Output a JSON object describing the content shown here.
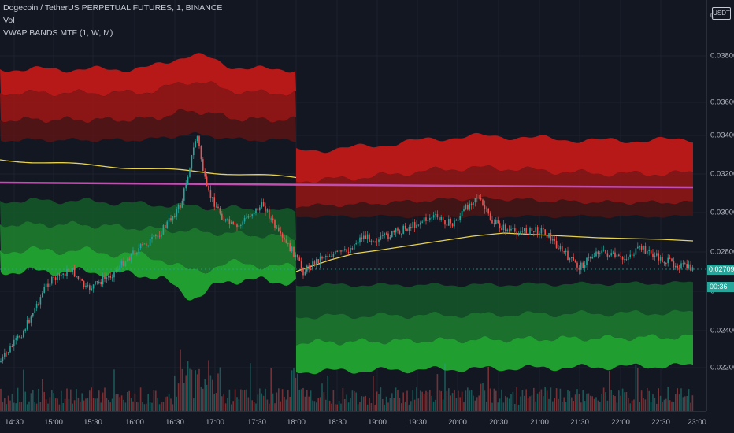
{
  "legend": {
    "symbol": "Dogecoin / TetherUS PERPETUAL FUTURES, 1, BINANCE",
    "volume": "Vol",
    "indicator": "VWAP BANDS MTF (1, W, M)"
  },
  "currency_label": "USDT",
  "price_axis": {
    "ticks": [
      "0.038000",
      "0.036000",
      "0.034000",
      "0.032000",
      "0.030000",
      "0.028000",
      "0.024000",
      "0.022000"
    ],
    "top_label": "0",
    "partial_label": "0",
    "last_price": "0.027098",
    "countdown": "00:36"
  },
  "time_axis": {
    "ticks": [
      "14:30",
      "15:00",
      "15:30",
      "16:00",
      "16:30",
      "17:00",
      "17:30",
      "18:00",
      "18:30",
      "19:00",
      "19:30",
      "20:00",
      "20:30",
      "21:00",
      "21:30",
      "22:00",
      "22:30",
      "23:00"
    ]
  },
  "colors": {
    "background": "#131722",
    "up": "#26a69a",
    "down": "#ef5350",
    "vwap_line": "#e8d24c",
    "monthly_line": "#c04fb0",
    "last_price_line": "#26a69a"
  }
}
